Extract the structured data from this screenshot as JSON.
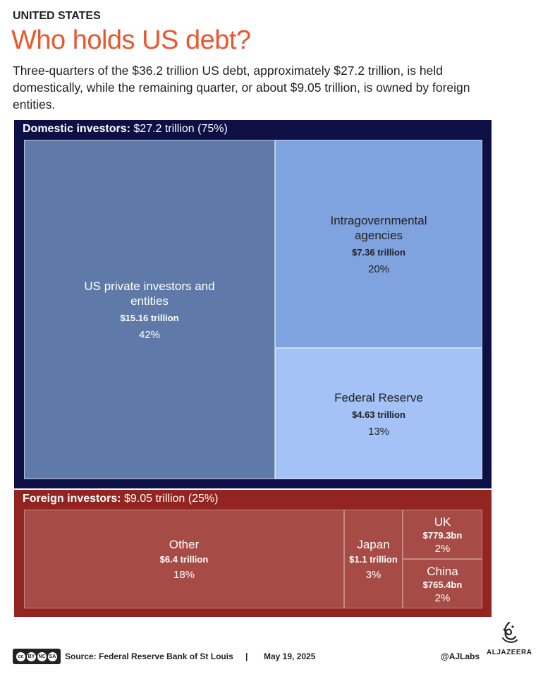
{
  "header": {
    "kicker": "UNITED STATES",
    "title": "Who holds US debt?",
    "subtitle": "Three-quarters of the $36.2 trillion US debt, approximately $27.2 trillion, is held domestically, while the remaining quarter, or about $9.05 trillion, is owned by foreign entities."
  },
  "domestic": {
    "label": "Domestic investors:",
    "value": "$27.2 trillion (75%)"
  },
  "foreign": {
    "label": "Foreign investors:",
    "value": "$9.05 trillion (25%)"
  },
  "colors": {
    "domestic_panel": "#0d0f45",
    "foreign_panel": "#93241f",
    "private": "#5f7aa8",
    "intragov": "#7fa3df",
    "fed": "#a4c2f6",
    "foreign_cell": "#a64b46"
  },
  "chart_data": {
    "type": "treemap",
    "groups": [
      {
        "name": "Domestic investors",
        "total": 27.2,
        "percent": 75,
        "items": [
          {
            "id": "private",
            "name": "US private investors and entities",
            "value": 15.16,
            "value_label": "$15.16 trillion",
            "percent": 42,
            "percent_label": "42%"
          },
          {
            "id": "intragov",
            "name": "Intragovernmental agencies",
            "value": 7.36,
            "value_label": "$7.36 trillion",
            "percent": 20,
            "percent_label": "20%"
          },
          {
            "id": "fed",
            "name": "Federal Reserve",
            "value": 4.63,
            "value_label": "$4.63 trillion",
            "percent": 13,
            "percent_label": "13%"
          }
        ]
      },
      {
        "name": "Foreign investors",
        "total": 9.05,
        "percent": 25,
        "items": [
          {
            "id": "other",
            "name": "Other",
            "value": 6.4,
            "value_label": "$6.4 trillion",
            "percent": 18,
            "percent_label": "18%"
          },
          {
            "id": "japan",
            "name": "Japan",
            "value": 1.1,
            "value_label": "$1.1 trillion",
            "percent": 3,
            "percent_label": "3%"
          },
          {
            "id": "uk",
            "name": "UK",
            "value": 0.7793,
            "value_label": "$779.3bn",
            "percent": 2,
            "percent_label": "2%"
          },
          {
            "id": "china",
            "name": "China",
            "value": 0.7654,
            "value_label": "$765.4bn",
            "percent": 2,
            "percent_label": "2%"
          }
        ]
      }
    ]
  },
  "footer": {
    "license": [
      "cc",
      "BY",
      "NC",
      "SA"
    ],
    "source": "Source:  Federal Reserve Bank of St Louis",
    "separator": "|",
    "date": "May 19, 2025",
    "handle": "@AJLabs",
    "logo_text": "ALJAZEERA"
  }
}
